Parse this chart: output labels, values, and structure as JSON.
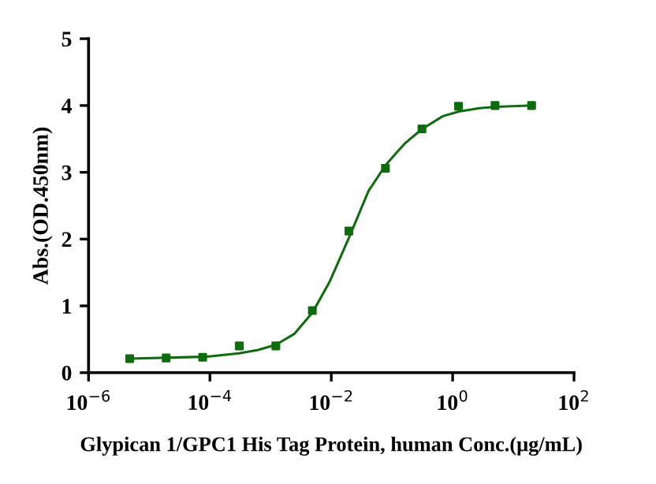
{
  "chart_data": {
    "type": "scatter",
    "xlabel": "Glypican 1/GPC1 His Tag Protein, human Conc.(μg/mL)",
    "ylabel": "Abs.(OD.450nm)",
    "log": "x",
    "grid": false,
    "legend": false,
    "xlim": [
      1e-06,
      100
    ],
    "ylim": [
      0,
      5
    ],
    "xticks": [
      {
        "value": 1e-06,
        "label": "10$^{−6}$"
      },
      {
        "value": 0.0001,
        "label": "10$^{−4}$"
      },
      {
        "value": 0.01,
        "label": "10$^{−2}$"
      },
      {
        "value": 1,
        "label": "10$^{0}$"
      },
      {
        "value": 100,
        "label": "10$^{2}$"
      }
    ],
    "yticks": [
      0,
      1,
      2,
      3,
      4,
      5
    ],
    "series": [
      {
        "marker": "square",
        "color": "#106b10",
        "x": [
          4.77e-06,
          1.9e-05,
          7.6e-05,
          0.000305,
          0.00122,
          0.00488,
          0.0195,
          0.078,
          0.3125,
          1.25,
          5,
          20
        ],
        "values": [
          0.21,
          0.22,
          0.23,
          0.4,
          0.4,
          0.93,
          2.12,
          3.06,
          3.65,
          3.99,
          4.0,
          4.0
        ]
      },
      {
        "type": "line",
        "marker": "none",
        "line_style": "solid",
        "color": "#106b10",
        "x": [
          4.79e-06,
          8.9e-05,
          0.0003,
          0.00062,
          0.00123,
          0.00245,
          0.0049,
          0.0095,
          0.02,
          0.041,
          0.079,
          0.162,
          0.316,
          0.69,
          1.26,
          2.75,
          5.1,
          20.4
        ],
        "values": [
          0.21,
          0.24,
          0.29,
          0.34,
          0.42,
          0.58,
          0.9,
          1.37,
          2.04,
          2.72,
          3.11,
          3.43,
          3.65,
          3.84,
          3.91,
          3.96,
          3.98,
          4.0
        ]
      }
    ]
  }
}
